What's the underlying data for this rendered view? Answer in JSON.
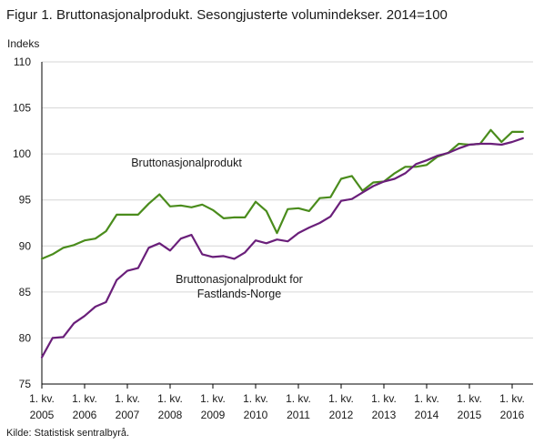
{
  "chart_data": {
    "type": "line",
    "title": "Figur 1. Bruttonasjonalprodukt. Sesongjusterte volumindekser. 2014=100",
    "ylabel": "Indeks",
    "xlabel": "",
    "ylim": [
      75,
      110
    ],
    "yticks": [
      75,
      80,
      85,
      90,
      95,
      100,
      105,
      110
    ],
    "grid": true,
    "x": [
      "2005K1",
      "2005K2",
      "2005K3",
      "2005K4",
      "2006K1",
      "2006K2",
      "2006K3",
      "2006K4",
      "2007K1",
      "2007K2",
      "2007K3",
      "2007K4",
      "2008K1",
      "2008K2",
      "2008K3",
      "2008K4",
      "2009K1",
      "2009K2",
      "2009K3",
      "2009K4",
      "2010K1",
      "2010K2",
      "2010K3",
      "2010K4",
      "2011K1",
      "2011K2",
      "2011K3",
      "2011K4",
      "2012K1",
      "2012K2",
      "2012K3",
      "2012K4",
      "2013K1",
      "2013K2",
      "2013K3",
      "2013K4",
      "2014K1",
      "2014K2",
      "2014K3",
      "2014K4",
      "2015K1",
      "2015K2",
      "2015K3",
      "2015K4",
      "2016K1",
      "2016K2"
    ],
    "xtick_labels": [
      {
        "top": "1. kv.",
        "bottom": "2005"
      },
      {
        "top": "1. kv.",
        "bottom": "2006"
      },
      {
        "top": "1. kv.",
        "bottom": "2007"
      },
      {
        "top": "1. kv.",
        "bottom": "2008"
      },
      {
        "top": "1. kv.",
        "bottom": "2009"
      },
      {
        "top": "1. kv.",
        "bottom": "2010"
      },
      {
        "top": "1. kv.",
        "bottom": "2011"
      },
      {
        "top": "1. kv.",
        "bottom": "2012"
      },
      {
        "top": "1. kv.",
        "bottom": "2013"
      },
      {
        "top": "1. kv.",
        "bottom": "2014"
      },
      {
        "top": "1. kv.",
        "bottom": "2015"
      },
      {
        "top": "1. kv.",
        "bottom": "2016"
      }
    ],
    "series": [
      {
        "name": "Bruttonasjonalprodukt",
        "label_lines": [
          "Bruttonasjonalprodukt"
        ],
        "color": "#4a8c1c",
        "values": [
          88.6,
          89.1,
          89.8,
          90.1,
          90.6,
          90.8,
          91.6,
          93.4,
          93.4,
          93.4,
          94.6,
          95.6,
          94.3,
          94.4,
          94.2,
          94.5,
          93.9,
          93.0,
          93.1,
          93.1,
          94.8,
          93.8,
          91.4,
          94.0,
          94.1,
          93.8,
          95.2,
          95.3,
          97.3,
          97.6,
          96.0,
          96.9,
          97.0,
          97.9,
          98.6,
          98.6,
          98.8,
          99.7,
          100.1,
          101.1,
          101.0,
          101.1,
          102.6,
          101.3,
          102.4,
          102.4
        ]
      },
      {
        "name": "Bruttonasjonalprodukt for Fastlands-Norge",
        "label_lines": [
          "Bruttonasjonalprodukt  for",
          "Fastlands-Norge"
        ],
        "color": "#6a1f7a",
        "values": [
          77.9,
          80.0,
          80.1,
          81.6,
          82.4,
          83.4,
          83.9,
          86.3,
          87.3,
          87.6,
          89.8,
          90.3,
          89.5,
          90.8,
          91.2,
          89.1,
          88.8,
          88.9,
          88.6,
          89.3,
          90.6,
          90.3,
          90.7,
          90.5,
          91.4,
          92.0,
          92.5,
          93.2,
          94.9,
          95.1,
          95.8,
          96.5,
          97.0,
          97.3,
          97.9,
          98.9,
          99.3,
          99.8,
          100.1,
          100.6,
          101.0,
          101.1,
          101.1,
          101.0,
          101.3,
          101.7
        ]
      }
    ]
  },
  "source": "Kilde: Statistisk sentralbyrå."
}
